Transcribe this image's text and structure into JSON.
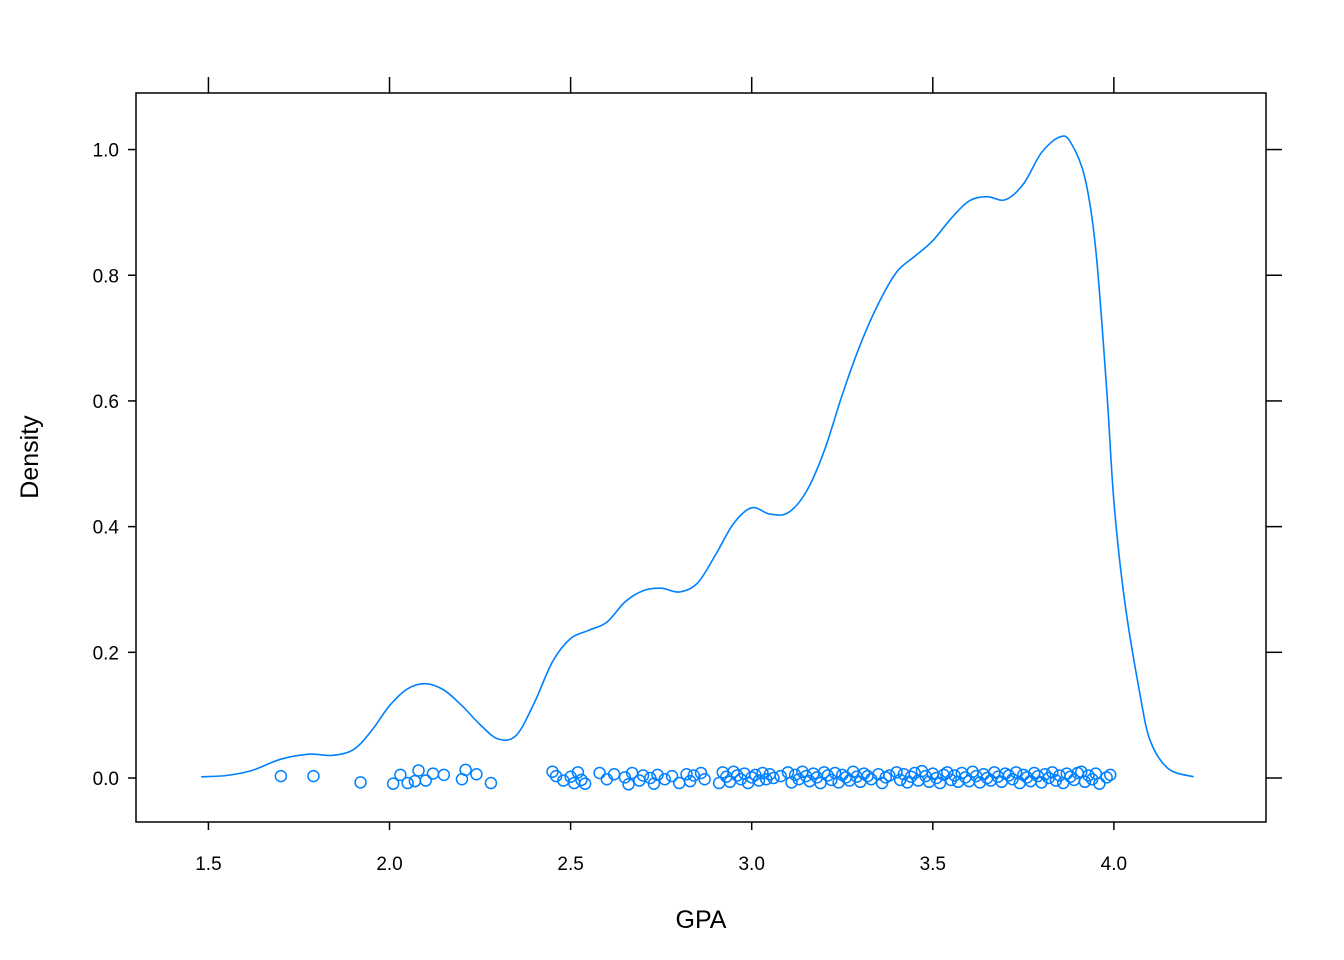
{
  "chart_data": {
    "type": "density",
    "xlabel": "GPA",
    "ylabel": "Density",
    "xlim": [
      1.3,
      4.42
    ],
    "ylim": [
      -0.07,
      1.09
    ],
    "x_ticks": [
      "1.5",
      "2.0",
      "2.5",
      "3.0",
      "3.5",
      "4.0"
    ],
    "y_ticks": [
      "0.0",
      "0.2",
      "0.4",
      "0.6",
      "0.8",
      "1.0"
    ],
    "color": "#0080ff",
    "grid": false,
    "density_curve": [
      [
        1.48,
        0.002
      ],
      [
        1.55,
        0.004
      ],
      [
        1.62,
        0.012
      ],
      [
        1.7,
        0.03
      ],
      [
        1.78,
        0.038
      ],
      [
        1.84,
        0.036
      ],
      [
        1.9,
        0.045
      ],
      [
        1.95,
        0.075
      ],
      [
        2.0,
        0.115
      ],
      [
        2.05,
        0.142
      ],
      [
        2.1,
        0.15
      ],
      [
        2.15,
        0.14
      ],
      [
        2.2,
        0.115
      ],
      [
        2.25,
        0.085
      ],
      [
        2.3,
        0.062
      ],
      [
        2.35,
        0.068
      ],
      [
        2.4,
        0.12
      ],
      [
        2.45,
        0.185
      ],
      [
        2.5,
        0.222
      ],
      [
        2.55,
        0.235
      ],
      [
        2.6,
        0.248
      ],
      [
        2.65,
        0.28
      ],
      [
        2.7,
        0.298
      ],
      [
        2.75,
        0.302
      ],
      [
        2.8,
        0.296
      ],
      [
        2.85,
        0.31
      ],
      [
        2.9,
        0.355
      ],
      [
        2.95,
        0.405
      ],
      [
        3.0,
        0.43
      ],
      [
        3.05,
        0.42
      ],
      [
        3.1,
        0.422
      ],
      [
        3.15,
        0.455
      ],
      [
        3.2,
        0.52
      ],
      [
        3.25,
        0.61
      ],
      [
        3.3,
        0.69
      ],
      [
        3.35,
        0.755
      ],
      [
        3.4,
        0.805
      ],
      [
        3.45,
        0.83
      ],
      [
        3.5,
        0.855
      ],
      [
        3.55,
        0.89
      ],
      [
        3.6,
        0.918
      ],
      [
        3.65,
        0.925
      ],
      [
        3.7,
        0.92
      ],
      [
        3.75,
        0.945
      ],
      [
        3.8,
        0.995
      ],
      [
        3.85,
        1.02
      ],
      [
        3.88,
        1.012
      ],
      [
        3.92,
        0.955
      ],
      [
        3.95,
        0.84
      ],
      [
        3.98,
        0.62
      ],
      [
        4.0,
        0.44
      ],
      [
        4.03,
        0.28
      ],
      [
        4.07,
        0.14
      ],
      [
        4.1,
        0.06
      ],
      [
        4.15,
        0.015
      ],
      [
        4.22,
        0.002
      ]
    ],
    "points": [
      [
        1.7,
        0.003
      ],
      [
        1.79,
        0.003
      ],
      [
        1.92,
        -0.007
      ],
      [
        2.01,
        -0.009
      ],
      [
        2.03,
        0.005
      ],
      [
        2.05,
        -0.008
      ],
      [
        2.07,
        -0.005
      ],
      [
        2.08,
        0.012
      ],
      [
        2.1,
        -0.004
      ],
      [
        2.12,
        0.007
      ],
      [
        2.15,
        0.005
      ],
      [
        2.2,
        -0.002
      ],
      [
        2.21,
        0.013
      ],
      [
        2.24,
        0.006
      ],
      [
        2.28,
        -0.008
      ],
      [
        2.45,
        0.01
      ],
      [
        2.46,
        0.003
      ],
      [
        2.48,
        -0.004
      ],
      [
        2.5,
        0.002
      ],
      [
        2.51,
        -0.008
      ],
      [
        2.52,
        0.009
      ],
      [
        2.53,
        -0.003
      ],
      [
        2.54,
        -0.009
      ],
      [
        2.58,
        0.008
      ],
      [
        2.6,
        -0.002
      ],
      [
        2.62,
        0.006
      ],
      [
        2.65,
        0.001
      ],
      [
        2.66,
        -0.01
      ],
      [
        2.67,
        0.008
      ],
      [
        2.69,
        -0.004
      ],
      [
        2.7,
        0.004
      ],
      [
        2.72,
        0.0
      ],
      [
        2.73,
        -0.009
      ],
      [
        2.74,
        0.005
      ],
      [
        2.76,
        -0.002
      ],
      [
        2.78,
        0.003
      ],
      [
        2.8,
        -0.008
      ],
      [
        2.82,
        0.006
      ],
      [
        2.83,
        -0.005
      ],
      [
        2.84,
        0.004
      ],
      [
        2.86,
        0.008
      ],
      [
        2.87,
        -0.002
      ],
      [
        2.91,
        -0.008
      ],
      [
        2.92,
        0.009
      ],
      [
        2.93,
        0.002
      ],
      [
        2.94,
        -0.006
      ],
      [
        2.95,
        0.01
      ],
      [
        2.96,
        0.004
      ],
      [
        2.97,
        -0.002
      ],
      [
        2.98,
        0.007
      ],
      [
        2.99,
        -0.008
      ],
      [
        3.0,
        0.001
      ],
      [
        3.01,
        0.005
      ],
      [
        3.02,
        -0.004
      ],
      [
        3.03,
        0.008
      ],
      [
        3.04,
        -0.002
      ],
      [
        3.05,
        0.006
      ],
      [
        3.06,
        0.0
      ],
      [
        3.08,
        0.003
      ],
      [
        3.1,
        0.009
      ],
      [
        3.11,
        -0.007
      ],
      [
        3.12,
        0.005
      ],
      [
        3.13,
        -0.002
      ],
      [
        3.14,
        0.01
      ],
      [
        3.15,
        0.003
      ],
      [
        3.16,
        -0.005
      ],
      [
        3.17,
        0.007
      ],
      [
        3.18,
        0.001
      ],
      [
        3.19,
        -0.008
      ],
      [
        3.2,
        0.009
      ],
      [
        3.21,
        0.004
      ],
      [
        3.22,
        -0.003
      ],
      [
        3.23,
        0.008
      ],
      [
        3.24,
        -0.007
      ],
      [
        3.25,
        0.005
      ],
      [
        3.26,
        0.001
      ],
      [
        3.27,
        -0.004
      ],
      [
        3.28,
        0.01
      ],
      [
        3.29,
        0.002
      ],
      [
        3.3,
        -0.006
      ],
      [
        3.31,
        0.007
      ],
      [
        3.32,
        0.003
      ],
      [
        3.33,
        -0.002
      ],
      [
        3.35,
        0.006
      ],
      [
        3.36,
        -0.008
      ],
      [
        3.37,
        0.001
      ],
      [
        3.38,
        0.004
      ],
      [
        3.4,
        0.009
      ],
      [
        3.41,
        -0.003
      ],
      [
        3.42,
        0.006
      ],
      [
        3.43,
        -0.007
      ],
      [
        3.44,
        0.002
      ],
      [
        3.45,
        0.008
      ],
      [
        3.46,
        -0.004
      ],
      [
        3.47,
        0.011
      ],
      [
        3.48,
        0.003
      ],
      [
        3.49,
        -0.006
      ],
      [
        3.5,
        0.007
      ],
      [
        3.51,
        0.0
      ],
      [
        3.52,
        -0.008
      ],
      [
        3.53,
        0.005
      ],
      [
        3.54,
        0.009
      ],
      [
        3.55,
        -0.003
      ],
      [
        3.56,
        0.004
      ],
      [
        3.57,
        -0.006
      ],
      [
        3.58,
        0.008
      ],
      [
        3.59,
        0.001
      ],
      [
        3.6,
        -0.005
      ],
      [
        3.61,
        0.01
      ],
      [
        3.62,
        0.003
      ],
      [
        3.63,
        -0.007
      ],
      [
        3.64,
        0.006
      ],
      [
        3.65,
        0.0
      ],
      [
        3.66,
        -0.004
      ],
      [
        3.67,
        0.009
      ],
      [
        3.68,
        0.002
      ],
      [
        3.69,
        -0.006
      ],
      [
        3.7,
        0.007
      ],
      [
        3.71,
        0.004
      ],
      [
        3.72,
        -0.002
      ],
      [
        3.73,
        0.009
      ],
      [
        3.74,
        -0.008
      ],
      [
        3.75,
        0.005
      ],
      [
        3.76,
        0.001
      ],
      [
        3.77,
        -0.005
      ],
      [
        3.78,
        0.008
      ],
      [
        3.79,
        0.003
      ],
      [
        3.8,
        -0.007
      ],
      [
        3.81,
        0.006
      ],
      [
        3.82,
        0.0
      ],
      [
        3.83,
        0.009
      ],
      [
        3.84,
        -0.004
      ],
      [
        3.85,
        0.004
      ],
      [
        3.86,
        -0.008
      ],
      [
        3.87,
        0.007
      ],
      [
        3.88,
        0.002
      ],
      [
        3.89,
        -0.003
      ],
      [
        3.9,
        0.008
      ],
      [
        3.91,
        0.01
      ],
      [
        3.92,
        -0.006
      ],
      [
        3.93,
        0.004
      ],
      [
        3.94,
        -0.002
      ],
      [
        3.95,
        0.007
      ],
      [
        3.96,
        -0.009
      ],
      [
        3.98,
        0.001
      ],
      [
        3.99,
        0.005
      ]
    ]
  }
}
